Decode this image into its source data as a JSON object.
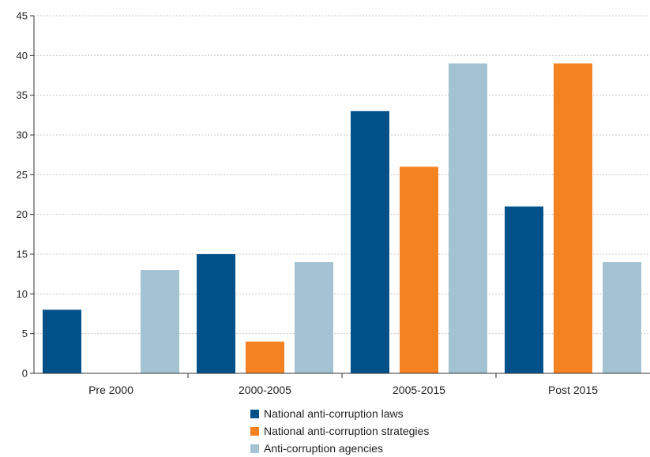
{
  "chart_data": {
    "type": "bar",
    "categories": [
      "Pre 2000",
      "2000-2005",
      "2005-2015",
      "Post 2015"
    ],
    "series": [
      {
        "name": "National anti-corruption laws",
        "values": [
          8,
          15,
          33,
          21
        ],
        "color": "#00508a"
      },
      {
        "name": "National anti-corruption strategies",
        "values": [
          0,
          4,
          26,
          39
        ],
        "color": "#f58220"
      },
      {
        "name": "Anti-corruption agencies",
        "values": [
          13,
          14,
          39,
          14
        ],
        "color": "#a3c3d3"
      }
    ],
    "yticks": [
      "0",
      "5",
      "10",
      "15",
      "20",
      "25",
      "30",
      "35",
      "40",
      "45"
    ],
    "ylim": [
      0,
      45
    ],
    "grid": true,
    "legend_position": "bottom-center"
  }
}
